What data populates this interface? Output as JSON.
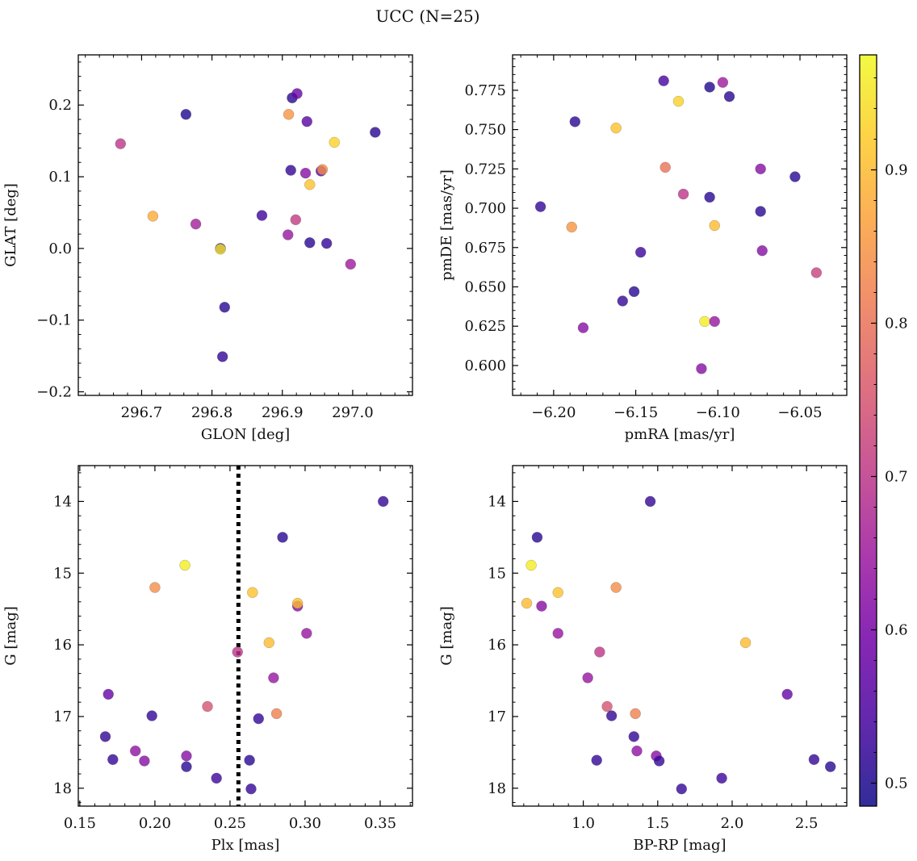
{
  "figure": {
    "title": "UCC (N=25)",
    "colorbar": {
      "min": 0.485,
      "max": 0.975,
      "ticks": [
        0.5,
        0.6,
        0.7,
        0.8,
        0.9
      ],
      "tick_labels": [
        "0.5",
        "0.6",
        "0.7",
        "0.8",
        "0.9"
      ],
      "colormap": "plasma",
      "colormap_stops": [
        "#0d0887",
        "#46039f",
        "#7201a8",
        "#9c179e",
        "#bd3786",
        "#d8576b",
        "#ed7953",
        "#fb9f3a",
        "#fdca26",
        "#f0f921"
      ]
    },
    "marker_alpha": 0.8
  },
  "chart_data": [
    {
      "type": "scatter",
      "id": "glon-glat",
      "xlabel": "GLON [deg]",
      "ylabel": "GLAT [deg]",
      "xlim": [
        296.61,
        297.085
      ],
      "ylim": [
        -0.205,
        0.27
      ],
      "x_ticks": [
        296.7,
        296.8,
        296.9,
        297.0
      ],
      "x_tick_labels": [
        "296.7",
        "296.8",
        "296.9",
        "297.0"
      ],
      "x_minor": 0.02,
      "y_ticks": [
        -0.2,
        -0.1,
        0.0,
        0.1,
        0.2
      ],
      "y_tick_labels": [
        "−0.2",
        "−0.1",
        "0.0",
        "0.1",
        "0.2"
      ],
      "y_minor": 0.02,
      "y_inverted": false,
      "points": [
        {
          "x": 296.67,
          "y": 0.146,
          "c": 0.7
        },
        {
          "x": 296.716,
          "y": 0.045,
          "c": 0.88
        },
        {
          "x": 296.763,
          "y": 0.187,
          "c": 0.5
        },
        {
          "x": 296.777,
          "y": 0.034,
          "c": 0.66
        },
        {
          "x": 296.812,
          "y": 0.0,
          "c": 0.52
        },
        {
          "x": 296.812,
          "y": -0.001,
          "c": 0.95
        },
        {
          "x": 296.815,
          "y": -0.151,
          "c": 0.52
        },
        {
          "x": 296.818,
          "y": -0.082,
          "c": 0.51
        },
        {
          "x": 296.871,
          "y": 0.046,
          "c": 0.53
        },
        {
          "x": 296.908,
          "y": 0.019,
          "c": 0.64
        },
        {
          "x": 296.909,
          "y": 0.187,
          "c": 0.85
        },
        {
          "x": 296.912,
          "y": 0.109,
          "c": 0.52
        },
        {
          "x": 296.914,
          "y": 0.21,
          "c": 0.51
        },
        {
          "x": 296.919,
          "y": 0.04,
          "c": 0.71
        },
        {
          "x": 296.921,
          "y": 0.216,
          "c": 0.58
        },
        {
          "x": 296.933,
          "y": 0.105,
          "c": 0.62
        },
        {
          "x": 296.935,
          "y": 0.177,
          "c": 0.56
        },
        {
          "x": 296.939,
          "y": 0.089,
          "c": 0.91
        },
        {
          "x": 296.939,
          "y": 0.008,
          "c": 0.51
        },
        {
          "x": 296.955,
          "y": 0.108,
          "c": 0.55
        },
        {
          "x": 296.957,
          "y": 0.11,
          "c": 0.84
        },
        {
          "x": 296.963,
          "y": 0.007,
          "c": 0.52
        },
        {
          "x": 296.974,
          "y": 0.148,
          "c": 0.93
        },
        {
          "x": 296.997,
          "y": -0.022,
          "c": 0.65
        },
        {
          "x": 297.032,
          "y": 0.162,
          "c": 0.51
        }
      ]
    },
    {
      "type": "scatter",
      "id": "pmra-pmde",
      "xlabel": "pmRA [mas/yr]",
      "ylabel": "pmDE [mas/yr]",
      "xlim": [
        -6.225,
        -6.0215
      ],
      "ylim": [
        0.581,
        0.7975
      ],
      "x_ticks": [
        -6.2,
        -6.15,
        -6.1,
        -6.05
      ],
      "x_tick_labels": [
        "−6.20",
        "−6.15",
        "−6.10",
        "−6.05"
      ],
      "x_minor": 0.01,
      "y_ticks": [
        0.6,
        0.625,
        0.65,
        0.675,
        0.7,
        0.725,
        0.75,
        0.775
      ],
      "y_tick_labels": [
        "0.600",
        "0.625",
        "0.650",
        "0.675",
        "0.700",
        "0.725",
        "0.750",
        "0.775"
      ],
      "y_minor": 0.005,
      "y_inverted": false,
      "points": [
        {
          "x": -6.208,
          "y": 0.701,
          "c": 0.52
        },
        {
          "x": -6.189,
          "y": 0.688,
          "c": 0.85
        },
        {
          "x": -6.187,
          "y": 0.755,
          "c": 0.51
        },
        {
          "x": -6.182,
          "y": 0.624,
          "c": 0.62
        },
        {
          "x": -6.162,
          "y": 0.751,
          "c": 0.91
        },
        {
          "x": -6.158,
          "y": 0.641,
          "c": 0.52
        },
        {
          "x": -6.151,
          "y": 0.647,
          "c": 0.51
        },
        {
          "x": -6.147,
          "y": 0.672,
          "c": 0.53
        },
        {
          "x": -6.133,
          "y": 0.781,
          "c": 0.54
        },
        {
          "x": -6.132,
          "y": 0.726,
          "c": 0.8
        },
        {
          "x": -6.124,
          "y": 0.768,
          "c": 0.93
        },
        {
          "x": -6.121,
          "y": 0.709,
          "c": 0.7
        },
        {
          "x": -6.11,
          "y": 0.598,
          "c": 0.62
        },
        {
          "x": -6.108,
          "y": 0.628,
          "c": 0.96
        },
        {
          "x": -6.105,
          "y": 0.707,
          "c": 0.51
        },
        {
          "x": -6.105,
          "y": 0.777,
          "c": 0.5
        },
        {
          "x": -6.102,
          "y": 0.628,
          "c": 0.64
        },
        {
          "x": -6.102,
          "y": 0.689,
          "c": 0.9
        },
        {
          "x": -6.097,
          "y": 0.78,
          "c": 0.65
        },
        {
          "x": -6.093,
          "y": 0.771,
          "c": 0.51
        },
        {
          "x": -6.074,
          "y": 0.725,
          "c": 0.62
        },
        {
          "x": -6.074,
          "y": 0.698,
          "c": 0.51
        },
        {
          "x": -6.073,
          "y": 0.673,
          "c": 0.62
        },
        {
          "x": -6.053,
          "y": 0.72,
          "c": 0.51
        },
        {
          "x": -6.04,
          "y": 0.659,
          "c": 0.72
        }
      ]
    },
    {
      "type": "scatter",
      "id": "plx-g",
      "xlabel": "Plx [mas]",
      "ylabel": "G [mag]",
      "xlim": [
        0.149,
        0.3715
      ],
      "ylim": [
        13.5,
        18.25
      ],
      "x_ticks": [
        0.15,
        0.2,
        0.25,
        0.3,
        0.35
      ],
      "x_tick_labels": [
        "0.15",
        "0.20",
        "0.25",
        "0.30",
        "0.35"
      ],
      "x_minor": 0.01,
      "y_ticks": [
        14,
        15,
        16,
        17,
        18
      ],
      "y_tick_labels": [
        "14",
        "15",
        "16",
        "17",
        "18"
      ],
      "y_minor": 0.2,
      "y_inverted": true,
      "vline": {
        "x": 0.2556,
        "style": "dotted"
      },
      "points": [
        {
          "x": 0.167,
          "y": 17.28,
          "c": 0.52
        },
        {
          "x": 0.169,
          "y": 16.69,
          "c": 0.58
        },
        {
          "x": 0.172,
          "y": 17.6,
          "c": 0.52
        },
        {
          "x": 0.187,
          "y": 17.48,
          "c": 0.63
        },
        {
          "x": 0.193,
          "y": 17.62,
          "c": 0.62
        },
        {
          "x": 0.198,
          "y": 16.99,
          "c": 0.52
        },
        {
          "x": 0.2,
          "y": 15.2,
          "c": 0.84
        },
        {
          "x": 0.22,
          "y": 14.89,
          "c": 0.96
        },
        {
          "x": 0.221,
          "y": 17.55,
          "c": 0.62
        },
        {
          "x": 0.221,
          "y": 17.7,
          "c": 0.51
        },
        {
          "x": 0.235,
          "y": 16.86,
          "c": 0.75
        },
        {
          "x": 0.241,
          "y": 17.86,
          "c": 0.53
        },
        {
          "x": 0.255,
          "y": 16.1,
          "c": 0.7
        },
        {
          "x": 0.263,
          "y": 17.61,
          "c": 0.51
        },
        {
          "x": 0.264,
          "y": 18.01,
          "c": 0.52
        },
        {
          "x": 0.265,
          "y": 15.27,
          "c": 0.91
        },
        {
          "x": 0.269,
          "y": 17.03,
          "c": 0.52
        },
        {
          "x": 0.276,
          "y": 15.97,
          "c": 0.9
        },
        {
          "x": 0.279,
          "y": 16.46,
          "c": 0.64
        },
        {
          "x": 0.281,
          "y": 16.96,
          "c": 0.82
        },
        {
          "x": 0.285,
          "y": 14.5,
          "c": 0.51
        },
        {
          "x": 0.295,
          "y": 15.46,
          "c": 0.62
        },
        {
          "x": 0.295,
          "y": 15.42,
          "c": 0.9
        },
        {
          "x": 0.301,
          "y": 15.84,
          "c": 0.64
        },
        {
          "x": 0.352,
          "y": 14.0,
          "c": 0.52
        }
      ]
    },
    {
      "type": "scatter",
      "id": "bprp-g",
      "xlabel": "BP-RP [mag]",
      "ylabel": "G [mag]",
      "xlim": [
        0.525,
        2.77
      ],
      "ylim": [
        13.5,
        18.25
      ],
      "x_ticks": [
        1.0,
        1.5,
        2.0,
        2.5
      ],
      "x_tick_labels": [
        "1.0",
        "1.5",
        "2.0",
        "2.5"
      ],
      "x_minor": 0.1,
      "y_ticks": [
        14,
        15,
        16,
        17,
        18
      ],
      "y_tick_labels": [
        "14",
        "15",
        "16",
        "17",
        "18"
      ],
      "y_minor": 0.2,
      "y_inverted": true,
      "points": [
        {
          "x": 0.62,
          "y": 15.42,
          "c": 0.9
        },
        {
          "x": 0.65,
          "y": 14.89,
          "c": 0.96
        },
        {
          "x": 0.69,
          "y": 14.5,
          "c": 0.51
        },
        {
          "x": 0.72,
          "y": 15.46,
          "c": 0.62
        },
        {
          "x": 0.83,
          "y": 15.27,
          "c": 0.91
        },
        {
          "x": 0.83,
          "y": 15.84,
          "c": 0.64
        },
        {
          "x": 1.03,
          "y": 16.46,
          "c": 0.64
        },
        {
          "x": 1.09,
          "y": 17.61,
          "c": 0.52
        },
        {
          "x": 1.11,
          "y": 16.1,
          "c": 0.7
        },
        {
          "x": 1.16,
          "y": 16.86,
          "c": 0.75
        },
        {
          "x": 1.19,
          "y": 16.99,
          "c": 0.52
        },
        {
          "x": 1.22,
          "y": 15.2,
          "c": 0.84
        },
        {
          "x": 1.34,
          "y": 17.28,
          "c": 0.52
        },
        {
          "x": 1.35,
          "y": 16.96,
          "c": 0.82
        },
        {
          "x": 1.36,
          "y": 17.48,
          "c": 0.63
        },
        {
          "x": 1.45,
          "y": 14.0,
          "c": 0.52
        },
        {
          "x": 1.49,
          "y": 17.55,
          "c": 0.62
        },
        {
          "x": 1.51,
          "y": 17.62,
          "c": 0.52
        },
        {
          "x": 1.66,
          "y": 18.01,
          "c": 0.52
        },
        {
          "x": 1.93,
          "y": 17.86,
          "c": 0.53
        },
        {
          "x": 2.09,
          "y": 15.97,
          "c": 0.9
        },
        {
          "x": 2.37,
          "y": 16.69,
          "c": 0.58
        },
        {
          "x": 2.55,
          "y": 17.6,
          "c": 0.52
        },
        {
          "x": 2.66,
          "y": 17.7,
          "c": 0.51
        }
      ]
    }
  ]
}
